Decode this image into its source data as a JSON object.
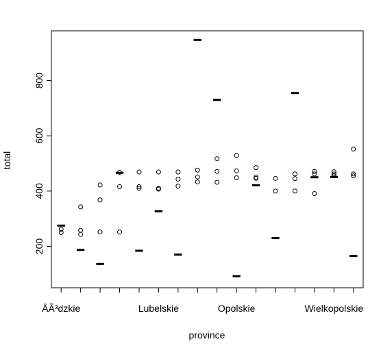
{
  "chart_data": {
    "type": "scatter",
    "xlabel": "province",
    "ylabel": "total",
    "y_ticks": [
      200,
      400,
      600,
      800
    ],
    "x_tick_labels": [
      {
        "index": 1,
        "label": "ÅÃ³dzkie"
      },
      {
        "index": 6,
        "label": "Lubelskie"
      },
      {
        "index": 10,
        "label": "Opolskie"
      },
      {
        "index": 15,
        "label": "Wielkopolskie"
      }
    ],
    "ylim": [
      50,
      980
    ],
    "xlim": [
      0.5,
      16.5
    ],
    "series": [
      {
        "values": [
          [
            1,
            250
          ],
          [
            1,
            262
          ],
          [
            2,
            243
          ],
          [
            2,
            258
          ],
          [
            2,
            343
          ],
          [
            3,
            252
          ],
          [
            3,
            368
          ],
          [
            3,
            422
          ],
          [
            4,
            252
          ],
          [
            4,
            416
          ],
          [
            4,
            468
          ],
          [
            5,
            410
          ],
          [
            5,
            416
          ],
          [
            5,
            469
          ],
          [
            6,
            407
          ],
          [
            6,
            410
          ],
          [
            6,
            469
          ],
          [
            7,
            418
          ],
          [
            7,
            443
          ],
          [
            7,
            469
          ],
          [
            8,
            433
          ],
          [
            8,
            451
          ],
          [
            8,
            476
          ],
          [
            9,
            432
          ],
          [
            9,
            471
          ],
          [
            9,
            517
          ],
          [
            10,
            448
          ],
          [
            10,
            473
          ],
          [
            10,
            529
          ],
          [
            11,
            446
          ],
          [
            11,
            450
          ],
          [
            11,
            485
          ],
          [
            12,
            400
          ],
          [
            12,
            446
          ],
          [
            13,
            400
          ],
          [
            13,
            445
          ],
          [
            13,
            462
          ],
          [
            14,
            391
          ],
          [
            14,
            462
          ],
          [
            14,
            471
          ],
          [
            15,
            455
          ],
          [
            15,
            462
          ],
          [
            15,
            470
          ],
          [
            16,
            455
          ],
          [
            16,
            462
          ],
          [
            16,
            552
          ]
        ]
      }
    ],
    "segments": [
      {
        "x0": 0.8,
        "x1": 1.2,
        "y": 275
      },
      {
        "x0": 1.8,
        "x1": 2.2,
        "y": 187
      },
      {
        "x0": 2.8,
        "x1": 3.2,
        "y": 136
      },
      {
        "x0": 3.8,
        "x1": 4.2,
        "y": 466
      },
      {
        "x0": 4.8,
        "x1": 5.2,
        "y": 184
      },
      {
        "x0": 5.8,
        "x1": 6.2,
        "y": 327
      },
      {
        "x0": 6.8,
        "x1": 7.2,
        "y": 170
      },
      {
        "x0": 7.8,
        "x1": 8.2,
        "y": 947
      },
      {
        "x0": 8.8,
        "x1": 9.2,
        "y": 730
      },
      {
        "x0": 9.8,
        "x1": 10.2,
        "y": 92
      },
      {
        "x0": 10.8,
        "x1": 11.2,
        "y": 421
      },
      {
        "x0": 11.8,
        "x1": 12.2,
        "y": 230
      },
      {
        "x0": 12.8,
        "x1": 13.2,
        "y": 755
      },
      {
        "x0": 13.8,
        "x1": 14.2,
        "y": 450
      },
      {
        "x0": 14.8,
        "x1": 15.2,
        "y": 451
      },
      {
        "x0": 15.8,
        "x1": 16.2,
        "y": 165
      }
    ],
    "grid": false,
    "colors": {
      "points": "#000000",
      "segments": "#000000",
      "axes": "#000000"
    }
  }
}
